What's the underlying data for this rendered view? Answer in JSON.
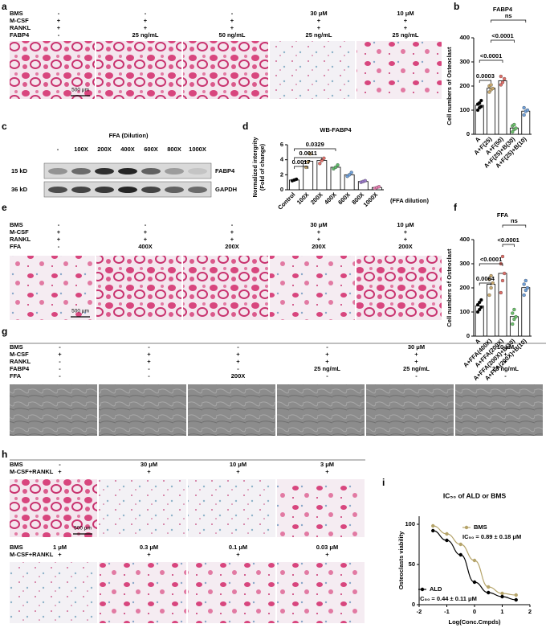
{
  "figure": {
    "a": {
      "letter": "a",
      "scale_bar": "500 μm",
      "rows": [
        {
          "label": "BMS",
          "cells": [
            "-",
            "-",
            "-",
            "30 μM",
            "10 μM"
          ]
        },
        {
          "label": "M-CSF",
          "cells": [
            "+",
            "+",
            "+",
            "+",
            "+"
          ]
        },
        {
          "label": "RANKL",
          "cells": [
            "+",
            "+",
            "+",
            "+",
            "+"
          ]
        },
        {
          "label": "FABP4",
          "cells": [
            "-",
            "25 ng/mL",
            "50 ng/mL",
            "25 ng/mL",
            "25 ng/mL"
          ]
        }
      ]
    },
    "c": {
      "letter": "c",
      "header": "FFA (Dilution)",
      "lanes": [
        "-",
        "100X",
        "200X",
        "400X",
        "600X",
        "800X",
        "1000X"
      ],
      "markers": [
        "15 kD",
        "36 kD"
      ],
      "bands": [
        "FABP4",
        "GAPDH"
      ]
    },
    "e": {
      "letter": "e",
      "scale_bar": "500 μm",
      "rows": [
        {
          "label": "BMS",
          "cells": [
            "-",
            "-",
            "-",
            "30 μM",
            "10 μM"
          ]
        },
        {
          "label": "M-CSF",
          "cells": [
            "+",
            "+",
            "+",
            "+",
            "+"
          ]
        },
        {
          "label": "RANKL",
          "cells": [
            "+",
            "+",
            "+",
            "+",
            "+"
          ]
        },
        {
          "label": "FFA",
          "cells": [
            "-",
            "400X",
            "200X",
            "200X",
            "200X"
          ]
        }
      ]
    },
    "g": {
      "letter": "g",
      "rows": [
        {
          "label": "BMS",
          "cells": [
            "-",
            "-",
            "-",
            "-",
            "30 μM",
            "10 μM"
          ]
        },
        {
          "label": "M-CSF",
          "cells": [
            "+",
            "+",
            "+",
            "+",
            "+",
            "+"
          ]
        },
        {
          "label": "RANKL",
          "cells": [
            "-",
            "+",
            "+",
            "+",
            "+",
            "+"
          ]
        },
        {
          "label": "FABP4",
          "cells": [
            "-",
            "-",
            "-",
            "25 ng/mL",
            "25 ng/mL",
            "25 ng/mL"
          ]
        },
        {
          "label": "FFA",
          "cells": [
            "-",
            "-",
            "200X",
            "-",
            "-",
            "-"
          ]
        }
      ]
    },
    "h": {
      "letter": "h",
      "scale_bar": "500 μm",
      "groups": [
        {
          "rows": [
            {
              "label": "BMS",
              "cells": [
                "-",
                "30 μM",
                "10 μM",
                "3 μM"
              ]
            },
            {
              "label": "M-CSF+RANKL",
              "cells": [
                "+",
                "+",
                "+",
                "+"
              ]
            }
          ]
        },
        {
          "rows": [
            {
              "label": "BMS",
              "cells": [
                "1 μM",
                "0.3 μM",
                "0.1 μM",
                "0.03 μM"
              ]
            },
            {
              "label": "M-CSF+RANKL",
              "cells": [
                "+",
                "+",
                "+",
                "+"
              ]
            }
          ]
        }
      ]
    }
  },
  "chart_data": [
    {
      "type": "bar",
      "panel": "b",
      "title": "FABP4",
      "ylabel": "Cell numbers of Osteoclast",
      "categories": [
        "A",
        "A+F(25)",
        "A+F(50)",
        "A+F(25)+B(30)",
        "A+F(25)+B(10)"
      ],
      "values": [
        120,
        191,
        222,
        26,
        96
      ],
      "points": [
        [
          100,
          110,
          115,
          125,
          130,
          140
        ],
        [
          175,
          185,
          190,
          200,
          205
        ],
        [
          205,
          215,
          230,
          240
        ],
        [
          10,
          20,
          25,
          35,
          40
        ],
        [
          80,
          95,
          100,
          110
        ]
      ],
      "colors": [
        "#000000",
        "#c8a96e",
        "#e0706a",
        "#6bbf6b",
        "#6f9fd8"
      ],
      "ylim": [
        0,
        400
      ],
      "yticks": [
        0,
        100,
        200,
        300,
        400
      ],
      "annotations": [
        {
          "text": "0.0003",
          "between": [
            "A",
            "A+F(25)"
          ]
        },
        {
          "text": "<0.0001",
          "between": [
            "A",
            "A+F(50)"
          ]
        },
        {
          "text": "<0.0001",
          "between": [
            "A+F(25)",
            "A+F(25)+B(30)"
          ]
        },
        {
          "text": "ns",
          "between": [
            "A+F(25)",
            "A+F(25)+B(10)"
          ]
        }
      ]
    },
    {
      "type": "bar",
      "panel": "d",
      "title": "WB-FABP4",
      "ylabel": [
        "Normalized intergrity",
        "(Fold of change)"
      ],
      "xlabel": "(FFA dilution)",
      "categories": [
        "Control",
        "100X",
        "200X",
        "400X",
        "600X",
        "800X",
        "1000X"
      ],
      "values": [
        1.3,
        3.8,
        3.9,
        3.0,
        2.0,
        1.1,
        0.3
      ],
      "points": [
        [
          1.2,
          1.3,
          1.4
        ],
        [
          3.0,
          3.7,
          4.8
        ],
        [
          3.5,
          3.9,
          4.2
        ],
        [
          2.8,
          3.0,
          3.3
        ],
        [
          1.8,
          2.0,
          2.3
        ],
        [
          1.0,
          1.1,
          1.2
        ],
        [
          0.2,
          0.3,
          0.4
        ]
      ],
      "colors": [
        "#000000",
        "#c8a96e",
        "#e0706a",
        "#5fb86a",
        "#6f9fd8",
        "#9a79c8",
        "#e57fb0"
      ],
      "ylim": [
        0,
        6
      ],
      "yticks": [
        0,
        2,
        4,
        6
      ],
      "annotations": [
        {
          "text": "0.0017",
          "between": [
            "Control",
            "100X"
          ]
        },
        {
          "text": "0.0011",
          "between": [
            "Control",
            "200X"
          ]
        },
        {
          "text": "0.0329",
          "between": [
            "Control",
            "400X"
          ]
        }
      ]
    },
    {
      "type": "bar",
      "panel": "f",
      "title": "FFA",
      "ylabel": "Cell numbers of Osteoclast",
      "categories": [
        "A",
        "A+FFA(400X)",
        "A+FFA(200X)",
        "A+FFA(200X)+B(30)",
        "A+FFA(200X)+B(10)"
      ],
      "values": [
        125,
        215,
        260,
        81,
        201
      ],
      "points": [
        [
          100,
          110,
          120,
          130,
          140,
          150
        ],
        [
          170,
          200,
          220,
          235,
          250
        ],
        [
          180,
          230,
          260,
          300,
          330
        ],
        [
          50,
          70,
          80,
          95,
          110
        ],
        [
          170,
          190,
          200,
          215,
          230
        ]
      ],
      "colors": [
        "#000000",
        "#c8a96e",
        "#e0706a",
        "#6bbf6b",
        "#6f9fd8"
      ],
      "ylim": [
        0,
        400
      ],
      "yticks": [
        0,
        100,
        200,
        300,
        400
      ],
      "annotations": [
        {
          "text": "0.0064",
          "between": [
            "A",
            "A+FFA(400X)"
          ]
        },
        {
          "text": "<0.0001",
          "between": [
            "A",
            "A+FFA(200X)"
          ]
        },
        {
          "text": "<0.0001",
          "between": [
            "A+FFA(200X)",
            "A+FFA(200X)+B(30)"
          ]
        },
        {
          "text": "ns",
          "between": [
            "A+FFA(200X)",
            "A+FFA(200X)+B(10)"
          ]
        }
      ]
    },
    {
      "type": "line",
      "panel": "i",
      "title": "IC₅₀ of ALD or BMS",
      "ylabel": "Osteoclasts viability",
      "xlabel": "Log(Conc.Cmpds)",
      "x": [
        -1.5,
        -1,
        -0.5,
        0,
        0.5,
        1,
        1.5
      ],
      "series": [
        {
          "name": "BMS",
          "color": "#b5a46a",
          "values": [
            98,
            88,
            75,
            55,
            22,
            14,
            12
          ],
          "ic50": "IC₅₀ = 0.89 ± 0.18 μM"
        },
        {
          "name": "ALD",
          "color": "#000000",
          "values": [
            92,
            80,
            62,
            28,
            15,
            10,
            6
          ],
          "ic50": "IC₅₀ = 0.44 ± 0.11 μM"
        }
      ],
      "xlim": [
        -2,
        2
      ],
      "xticks": [
        -2,
        -1,
        0,
        1,
        2
      ],
      "ylim": [
        0,
        110
      ],
      "yticks": [
        0,
        50,
        100
      ]
    }
  ]
}
